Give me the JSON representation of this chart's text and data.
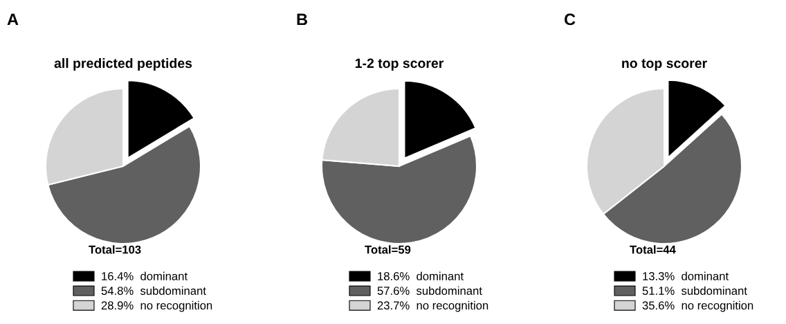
{
  "chart_data": [
    {
      "type": "pie",
      "title": "all predicted peptides",
      "categories": [
        "dominant",
        "subdominant",
        "no recognition"
      ],
      "values": [
        16.4,
        54.8,
        28.9
      ],
      "value_labels": [
        "16.4%",
        "54.8%",
        "28.9%"
      ],
      "colors": [
        "#000000",
        "#606060",
        "#d4d4d4"
      ],
      "legend": "bottom",
      "annotations": [
        "A",
        "Total=103"
      ]
    },
    {
      "type": "pie",
      "title": "1-2 top scorer",
      "categories": [
        "dominant",
        "subdominant",
        "no recognition"
      ],
      "values": [
        18.6,
        57.6,
        23.7
      ],
      "value_labels": [
        "18.6%",
        "57.6%",
        "23.7%"
      ],
      "colors": [
        "#000000",
        "#606060",
        "#d4d4d4"
      ],
      "legend": "bottom",
      "annotations": [
        "B",
        "Total=59"
      ]
    },
    {
      "type": "pie",
      "title": "no top scorer",
      "categories": [
        "dominant",
        "subdominant",
        "no recognition"
      ],
      "values": [
        13.3,
        51.1,
        35.6
      ],
      "value_labels": [
        "13.3%",
        "51.1%",
        "35.6%"
      ],
      "colors": [
        "#000000",
        "#606060",
        "#d4d4d4"
      ],
      "legend": "bottom",
      "annotations": [
        "C",
        "Total=44"
      ]
    }
  ]
}
